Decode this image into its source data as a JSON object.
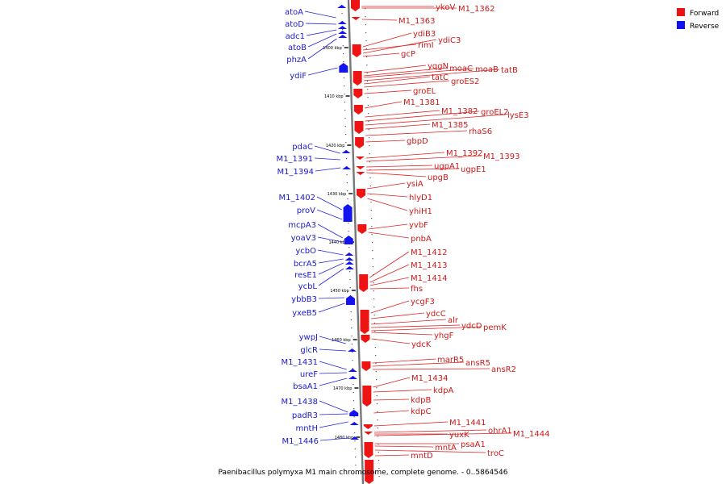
{
  "caption": "Paenibacillus polymyxa M1 main chromosome, complete genome. - 0..5864546",
  "legend": [
    {
      "label": "Forward",
      "color": "#ee1111"
    },
    {
      "label": "Reverse",
      "color": "#1111ee"
    }
  ],
  "scale_marks": [
    "1400 kbp",
    "1410 kbp",
    "1420 kbp",
    "1430 kbp",
    "1440 kbp",
    "1450 kbp",
    "1460 kbp",
    "1470 kbp",
    "1480 kbp"
  ],
  "reverse_genes": [
    "atoA",
    "atoD",
    "adc1",
    "atoB",
    "phzA",
    "ydiF",
    "pdaC",
    "M1_1391",
    "M1_1394",
    "M1_1402",
    "proV",
    "mcpA3",
    "yoaV3",
    "ycbO",
    "bcrA5",
    "resE1",
    "ycbL",
    "ybbB3",
    "yxeB5",
    "ywpJ",
    "glcR",
    "M1_1431",
    "ureF",
    "bsaA1",
    "M1_1438",
    "padR3",
    "mntH",
    "M1_1446"
  ],
  "forward_genes": [
    "ykoV",
    "M1_1362",
    "M1_1363",
    "ydiB3",
    "rimI",
    "ydiC3",
    "gcP",
    "yqgN",
    "moaC",
    "moaB",
    "tatB",
    "tatC",
    "groES2",
    "groEL",
    "M1_1381",
    "M1_1382",
    "groEL2",
    "lysE3",
    "M1_1385",
    "rhaS6",
    "gbpD",
    "M1_1392",
    "M1_1393",
    "ugpA1",
    "ugpE1",
    "upgB",
    "ysiA",
    "hlyD1",
    "yhiH1",
    "yvbF",
    "pnbA",
    "M1_1412",
    "M1_1413",
    "M1_1414",
    "fhs",
    "ycgF3",
    "ydcC",
    "alr",
    "ydcD",
    "pemK",
    "yhgF",
    "ydcK",
    "marR5",
    "ansR5",
    "ansR2",
    "M1_1434",
    "kdpA",
    "kdpB",
    "kdpC",
    "M1_1441",
    "ohrA1",
    "M1_1444",
    "yuxK",
    "psaA1",
    "mntA",
    "troC",
    "mntD"
  ]
}
